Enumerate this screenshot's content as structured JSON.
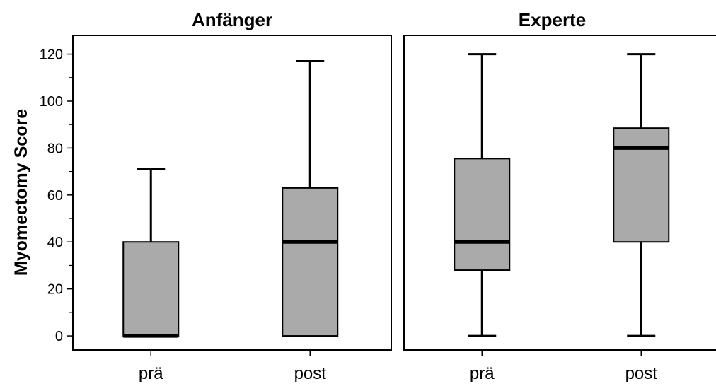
{
  "chart_data": {
    "type": "boxplot",
    "ylabel": "Myomectomy Score",
    "ylim": [
      -6,
      128
    ],
    "yticks": [
      0,
      20,
      40,
      60,
      80,
      100,
      120
    ],
    "grid": false,
    "colors": {
      "box": "#aaaaaa",
      "line": "#000000"
    },
    "panels": [
      {
        "title": "Anfänger",
        "categories": [
          "prä",
          "post"
        ],
        "boxes": [
          {
            "category": "prä",
            "min": 0,
            "q1": 0,
            "median": 0,
            "q3": 40,
            "max": 71
          },
          {
            "category": "post",
            "min": 0,
            "q1": 0,
            "median": 40,
            "q3": 63,
            "max": 117
          }
        ]
      },
      {
        "title": "Experte",
        "categories": [
          "prä",
          "post"
        ],
        "boxes": [
          {
            "category": "prä",
            "min": 0,
            "q1": 28,
            "median": 40,
            "q3": 75.5,
            "max": 120
          },
          {
            "category": "post",
            "min": 0,
            "q1": 40,
            "median": 80,
            "q3": 88.5,
            "max": 120
          }
        ]
      }
    ]
  }
}
